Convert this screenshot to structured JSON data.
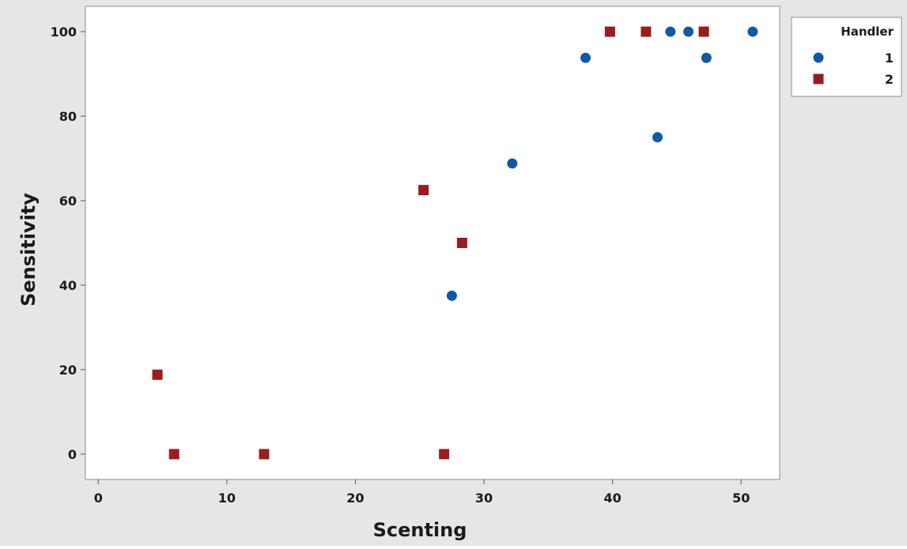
{
  "chart_data": {
    "type": "scatter",
    "title": "",
    "xlabel": "Scenting",
    "ylabel": "Sensitivity",
    "xlim": [
      -1,
      53
    ],
    "ylim": [
      -6,
      106
    ],
    "xticks": [
      0,
      10,
      20,
      30,
      40,
      50
    ],
    "yticks": [
      0,
      20,
      40,
      60,
      80,
      100
    ],
    "grid": false,
    "legend": {
      "title": "Handler",
      "placement": "top-right-outside"
    },
    "series": [
      {
        "name": "1",
        "marker": "circle",
        "color": "#0f5aa8",
        "points": [
          {
            "x": 27.5,
            "y": 37.5
          },
          {
            "x": 32.2,
            "y": 68.8
          },
          {
            "x": 37.9,
            "y": 93.8
          },
          {
            "x": 43.5,
            "y": 75.0
          },
          {
            "x": 44.5,
            "y": 100
          },
          {
            "x": 45.9,
            "y": 100
          },
          {
            "x": 47.3,
            "y": 93.8
          },
          {
            "x": 50.9,
            "y": 100
          }
        ]
      },
      {
        "name": "2",
        "marker": "square",
        "color": "#9b1c1c",
        "points": [
          {
            "x": 4.6,
            "y": 18.8
          },
          {
            "x": 5.9,
            "y": 0
          },
          {
            "x": 12.9,
            "y": 0
          },
          {
            "x": 25.3,
            "y": 62.5
          },
          {
            "x": 26.9,
            "y": 0
          },
          {
            "x": 28.3,
            "y": 50.0
          },
          {
            "x": 39.8,
            "y": 100
          },
          {
            "x": 42.6,
            "y": 100
          },
          {
            "x": 47.1,
            "y": 100
          }
        ]
      }
    ]
  },
  "colors": {
    "outer_background": "#e6e6e6",
    "plot_background": "#ffffff"
  }
}
